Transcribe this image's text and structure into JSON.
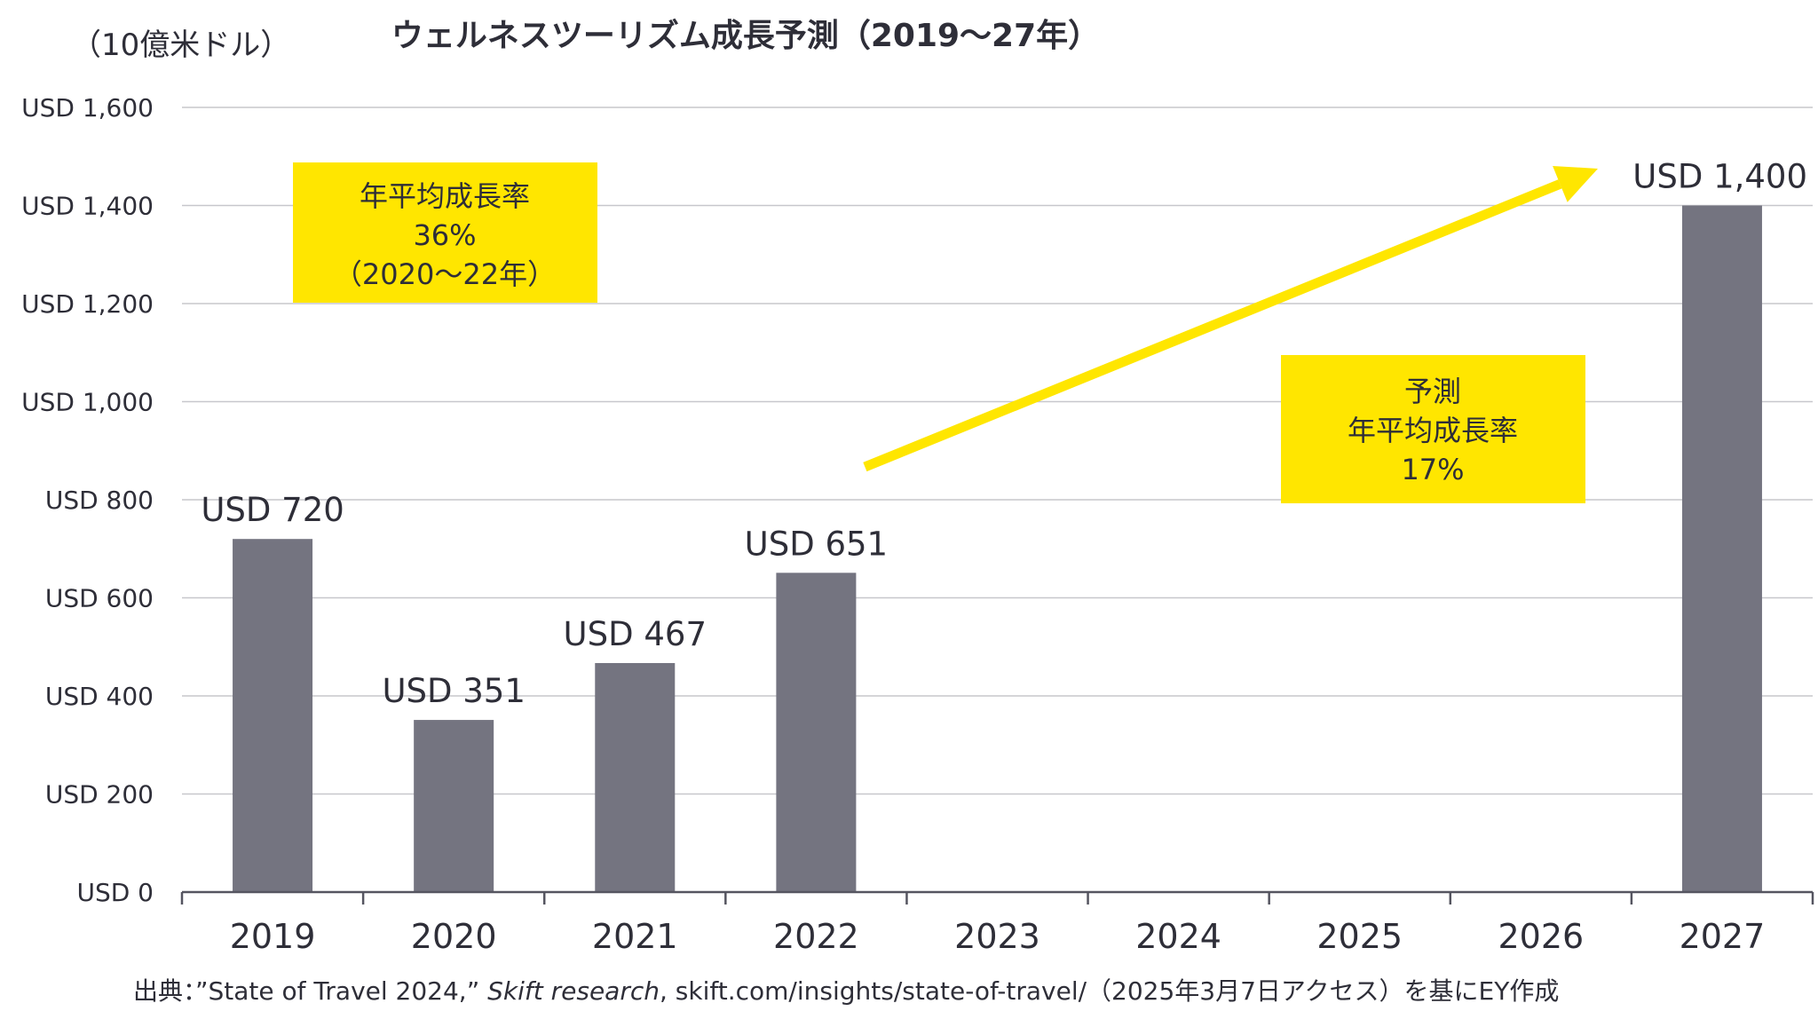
{
  "chart_data": {
    "type": "bar",
    "title": "ウェルネスツーリズム成長予測（2019〜27年）",
    "unit_label": "（10億米ドル）",
    "categories": [
      "2019",
      "2020",
      "2021",
      "2022",
      "2023",
      "2024",
      "2025",
      "2026",
      "2027"
    ],
    "values": [
      720,
      351,
      467,
      651,
      null,
      null,
      null,
      null,
      1400
    ],
    "data_labels": [
      "USD 720",
      "USD 351",
      "USD 467",
      "USD 651",
      "",
      "",
      "",
      "",
      "USD 1,400"
    ],
    "ylim": [
      0,
      1600
    ],
    "yticks": [
      0,
      200,
      400,
      600,
      800,
      1000,
      1200,
      1400,
      1600
    ],
    "ytick_labels": [
      "USD 0",
      "USD 200",
      "USD 400",
      "USD 600",
      "USD 800",
      "USD 1,000",
      "USD 1,200",
      "USD 1,400",
      "USD 1,600"
    ],
    "bar_color": "#747480",
    "grid": true,
    "annotations": [
      {
        "lines": [
          "年平均成長率",
          "36%",
          "（2020〜22年）"
        ],
        "color": "#ffe600"
      },
      {
        "lines": [
          "予測",
          "年平均成長率",
          "17%"
        ],
        "color": "#ffe600"
      }
    ],
    "arrow": {
      "from_category": "2022",
      "to_category": "2027",
      "color": "#ffe600"
    }
  },
  "source": {
    "prefix": "出典：”State of Travel 2024,” ",
    "italic": "Skift research",
    "suffix": ", skift.com/insights/state-of-travel/（2025年3月7日アクセス）を基にEY作成"
  }
}
